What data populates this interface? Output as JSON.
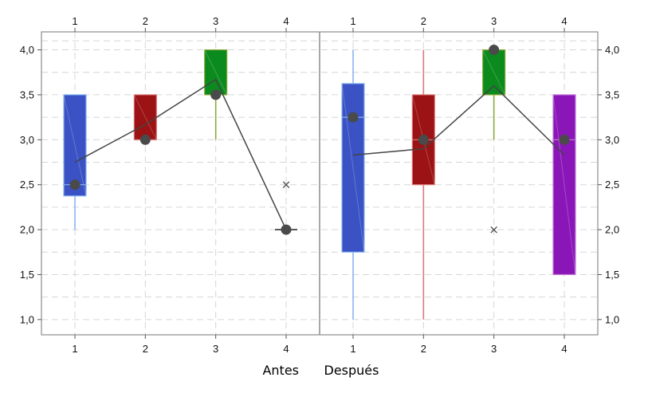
{
  "chart_data": {
    "type": "box",
    "y_ticks": [
      "1,0",
      "1,5",
      "2,0",
      "2,5",
      "3,0",
      "3,5",
      "4,0"
    ],
    "ylim": [
      0.83,
      4.2
    ],
    "grid": true,
    "panels": [
      {
        "label": "Antes",
        "categories": [
          "1",
          "2",
          "3",
          "4"
        ],
        "boxes": [
          {
            "category": "1",
            "color": "#3a52c4",
            "whisker_color": "#87b4f0",
            "q1": 2.375,
            "median": 2.5,
            "q3": 3.5,
            "whisker_low": 2.0,
            "whisker_high": 3.5,
            "mean": 2.75,
            "point": 2.5,
            "outliers": []
          },
          {
            "category": "2",
            "color": "#9b1314",
            "whisker_color": "#d97a7a",
            "q1": 3.0,
            "median": 3.0,
            "q3": 3.5,
            "whisker_low": 3.0,
            "whisker_high": 3.5,
            "mean": 3.17,
            "point": 3.0,
            "outliers": []
          },
          {
            "category": "3",
            "color": "#0b8a1e",
            "whisker_color": "#8aaa3a",
            "q1": 3.5,
            "median": 3.5,
            "q3": 4.0,
            "whisker_low": 3.0,
            "whisker_high": 4.0,
            "mean": 3.67,
            "point": 3.5,
            "outliers": []
          },
          {
            "category": "4",
            "color": "#333333",
            "whisker_color": "#333333",
            "q1": 2.0,
            "median": 2.0,
            "q3": 2.0,
            "whisker_low": 2.0,
            "whisker_high": 2.0,
            "mean": 2.0,
            "point": 2.0,
            "outliers": [
              2.5
            ]
          }
        ]
      },
      {
        "label": "Después",
        "categories": [
          "1",
          "2",
          "3",
          "4"
        ],
        "boxes": [
          {
            "category": "1",
            "color": "#3a52c4",
            "whisker_color": "#87b4f0",
            "q1": 1.75,
            "median": 3.25,
            "q3": 3.625,
            "whisker_low": 1.0,
            "whisker_high": 4.0,
            "mean": 2.83,
            "point": 3.25,
            "outliers": []
          },
          {
            "category": "2",
            "color": "#9b1314",
            "whisker_color": "#d97a7a",
            "q1": 2.5,
            "median": 3.0,
            "q3": 3.5,
            "whisker_low": 1.0,
            "whisker_high": 4.0,
            "mean": 2.9,
            "point": 3.0,
            "outliers": []
          },
          {
            "category": "3",
            "color": "#0b8a1e",
            "whisker_color": "#8aaa3a",
            "q1": 3.5,
            "median": 4.0,
            "q3": 4.0,
            "whisker_low": 3.0,
            "whisker_high": 4.0,
            "mean": 3.6,
            "point": 4.0,
            "outliers": [
              2.0
            ]
          },
          {
            "category": "4",
            "color": "#8a16b8",
            "whisker_color": "#c07ad6",
            "q1": 1.5,
            "median": 3.0,
            "q3": 3.5,
            "whisker_low": 1.5,
            "whisker_high": 3.5,
            "mean": 2.83,
            "point": 3.0,
            "outliers": []
          }
        ]
      }
    ]
  }
}
